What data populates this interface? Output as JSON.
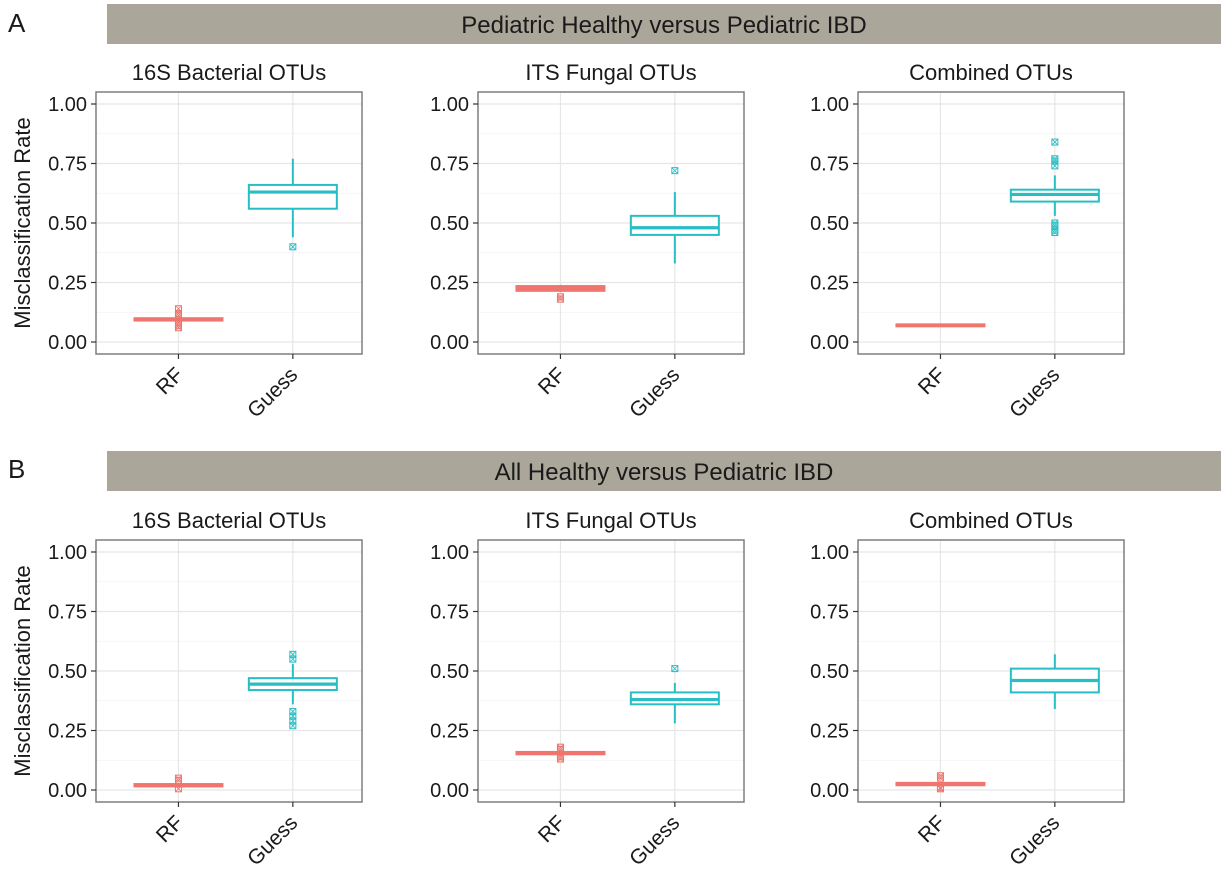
{
  "colors": {
    "strip": "#aba69a",
    "rf": "#f0756d",
    "guess": "#27bec4",
    "grid": "#e6e6e6",
    "panel_border": "#7f7f7f",
    "text": "#1a1a1a"
  },
  "chart_data": [
    {
      "type": "box",
      "section": "A",
      "strip_title": "Pediatric Healthy versus Pediatric IBD",
      "title": "16S Bacterial OTUs",
      "ylabel": "Misclassification Rate",
      "categories": [
        "RF",
        "Guess"
      ],
      "ylim": [
        0,
        1
      ],
      "yticks": [
        "0.00",
        "0.25",
        "0.50",
        "0.75",
        "1.00"
      ],
      "boxes": [
        {
          "category": "RF",
          "whisker_low": 0.09,
          "q1": 0.09,
          "median": 0.095,
          "q3": 0.1,
          "whisker_high": 0.1,
          "outliers": [
            0.06,
            0.07,
            0.08,
            0.11,
            0.12,
            0.14
          ]
        },
        {
          "category": "Guess",
          "whisker_low": 0.44,
          "q1": 0.56,
          "median": 0.63,
          "q3": 0.66,
          "whisker_high": 0.77,
          "outliers": [
            0.4
          ]
        }
      ]
    },
    {
      "type": "box",
      "section": "A",
      "title": "ITS Fungal OTUs",
      "categories": [
        "RF",
        "Guess"
      ],
      "ylim": [
        0,
        1
      ],
      "yticks": [
        "0.00",
        "0.25",
        "0.50",
        "0.75",
        "1.00"
      ],
      "boxes": [
        {
          "category": "RF",
          "whisker_low": 0.21,
          "q1": 0.215,
          "median": 0.225,
          "q3": 0.235,
          "whisker_high": 0.24,
          "outliers": [
            0.18,
            0.19
          ]
        },
        {
          "category": "Guess",
          "whisker_low": 0.33,
          "q1": 0.45,
          "median": 0.48,
          "q3": 0.53,
          "whisker_high": 0.63,
          "outliers": [
            0.72
          ]
        }
      ]
    },
    {
      "type": "box",
      "section": "A",
      "title": "Combined OTUs",
      "categories": [
        "RF",
        "Guess"
      ],
      "ylim": [
        0,
        1
      ],
      "yticks": [
        "0.00",
        "0.25",
        "0.50",
        "0.75",
        "1.00"
      ],
      "boxes": [
        {
          "category": "RF",
          "whisker_low": 0.07,
          "q1": 0.07,
          "median": 0.07,
          "q3": 0.07,
          "whisker_high": 0.07,
          "outliers": []
        },
        {
          "category": "Guess",
          "whisker_low": 0.53,
          "q1": 0.59,
          "median": 0.62,
          "q3": 0.64,
          "whisker_high": 0.7,
          "outliers": [
            0.46,
            0.47,
            0.49,
            0.5,
            0.74,
            0.76,
            0.77,
            0.84
          ]
        }
      ]
    },
    {
      "type": "box",
      "section": "B",
      "strip_title": "All Healthy versus Pediatric IBD",
      "title": "16S Bacterial OTUs",
      "ylabel": "Misclassification Rate",
      "categories": [
        "RF",
        "Guess"
      ],
      "ylim": [
        0,
        1
      ],
      "yticks": [
        "0.00",
        "0.25",
        "0.50",
        "0.75",
        "1.00"
      ],
      "boxes": [
        {
          "category": "RF",
          "whisker_low": 0.01,
          "q1": 0.015,
          "median": 0.02,
          "q3": 0.025,
          "whisker_high": 0.03,
          "outliers": [
            0.005,
            0.04,
            0.05
          ]
        },
        {
          "category": "Guess",
          "whisker_low": 0.36,
          "q1": 0.42,
          "median": 0.445,
          "q3": 0.47,
          "whisker_high": 0.53,
          "outliers": [
            0.27,
            0.29,
            0.31,
            0.33,
            0.55,
            0.57
          ]
        }
      ]
    },
    {
      "type": "box",
      "section": "B",
      "title": "ITS Fungal OTUs",
      "categories": [
        "RF",
        "Guess"
      ],
      "ylim": [
        0,
        1
      ],
      "yticks": [
        "0.00",
        "0.25",
        "0.50",
        "0.75",
        "1.00"
      ],
      "boxes": [
        {
          "category": "RF",
          "whisker_low": 0.145,
          "q1": 0.15,
          "median": 0.155,
          "q3": 0.16,
          "whisker_high": 0.165,
          "outliers": [
            0.13,
            0.14,
            0.17,
            0.18
          ]
        },
        {
          "category": "Guess",
          "whisker_low": 0.28,
          "q1": 0.36,
          "median": 0.38,
          "q3": 0.41,
          "whisker_high": 0.45,
          "outliers": [
            0.51
          ]
        }
      ]
    },
    {
      "type": "box",
      "section": "B",
      "title": "Combined OTUs",
      "categories": [
        "RF",
        "Guess"
      ],
      "ylim": [
        0,
        1
      ],
      "yticks": [
        "0.00",
        "0.25",
        "0.50",
        "0.75",
        "1.00"
      ],
      "boxes": [
        {
          "category": "RF",
          "whisker_low": 0.02,
          "q1": 0.02,
          "median": 0.025,
          "q3": 0.03,
          "whisker_high": 0.03,
          "outliers": [
            0.005,
            0.01,
            0.05,
            0.06
          ]
        },
        {
          "category": "Guess",
          "whisker_low": 0.34,
          "q1": 0.41,
          "median": 0.46,
          "q3": 0.51,
          "whisker_high": 0.57,
          "outliers": []
        }
      ]
    }
  ]
}
